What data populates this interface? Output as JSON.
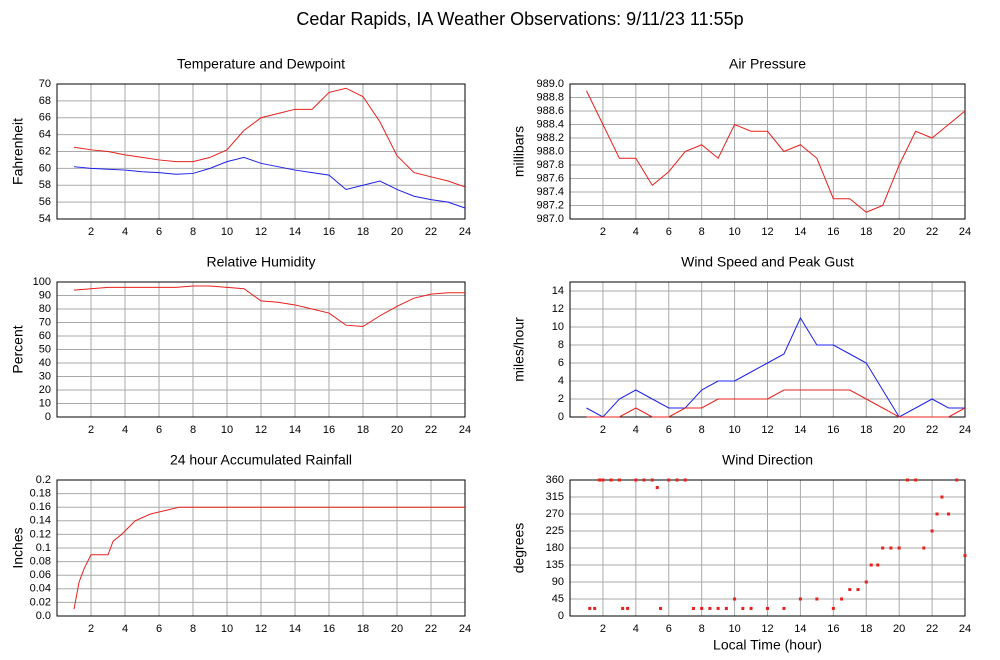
{
  "title": "Cedar Rapids, IA Weather Observations: 9/11/23 11:55p",
  "chart_data": [
    {
      "type": "line",
      "title": "Temperature and Dewpoint",
      "ylabel": "Fahrenheit",
      "x": [
        1,
        2,
        3,
        4,
        5,
        6,
        7,
        8,
        9,
        10,
        11,
        12,
        13,
        14,
        15,
        16,
        17,
        18,
        19,
        20,
        21,
        22,
        23,
        24
      ],
      "series": [
        {
          "color": "#e8201c",
          "values": [
            62.5,
            62.2,
            62,
            61.6,
            61.3,
            61,
            60.8,
            60.8,
            61.3,
            62.2,
            64.5,
            66,
            66.5,
            67,
            67,
            69,
            69.5,
            68.5,
            65.5,
            61.5,
            59.5,
            59,
            58.5,
            57.8
          ]
        },
        {
          "color": "#1c20e8",
          "values": [
            60.2,
            60,
            59.9,
            59.8,
            59.6,
            59.5,
            59.3,
            59.4,
            60,
            60.8,
            61.3,
            60.6,
            60.2,
            59.8,
            59.5,
            59.2,
            57.5,
            58,
            58.5,
            57.5,
            56.7,
            56.3,
            56,
            55.3
          ]
        }
      ],
      "xlim": [
        0,
        24
      ],
      "xticks": [
        2,
        4,
        6,
        8,
        10,
        12,
        14,
        16,
        18,
        20,
        22,
        24
      ],
      "ylim": [
        54,
        70
      ],
      "yticks": [
        54,
        56,
        58,
        60,
        62,
        64,
        66,
        68,
        70
      ],
      "grid": true
    },
    {
      "type": "line",
      "title": "Air Pressure",
      "ylabel": "millibars",
      "x": [
        1,
        2,
        3,
        4,
        5,
        6,
        7,
        8,
        9,
        10,
        11,
        12,
        13,
        14,
        15,
        16,
        17,
        18,
        19,
        20,
        21,
        22,
        23,
        24
      ],
      "series": [
        {
          "color": "#e8201c",
          "values": [
            988.9,
            988.4,
            987.9,
            987.9,
            987.5,
            987.7,
            988.0,
            988.1,
            987.9,
            988.4,
            988.3,
            988.3,
            988.0,
            988.1,
            987.9,
            987.3,
            987.3,
            987.1,
            987.2,
            987.8,
            988.3,
            988.2,
            988.4,
            988.6
          ]
        }
      ],
      "xlim": [
        0,
        24
      ],
      "xticks": [
        2,
        4,
        6,
        8,
        10,
        12,
        14,
        16,
        18,
        20,
        22,
        24
      ],
      "ylim": [
        987,
        989
      ],
      "yticks": [
        {
          "value": 987,
          "label": "987.0"
        },
        987.2,
        987.4,
        987.6,
        987.8,
        {
          "value": 988,
          "label": "988.0"
        },
        988.2,
        988.4,
        988.6,
        988.8,
        {
          "value": 989,
          "label": "989.0"
        }
      ],
      "grid": true
    },
    {
      "type": "line",
      "title": "Relative Humidity",
      "ylabel": "Percent",
      "x": [
        1,
        2,
        3,
        4,
        5,
        6,
        7,
        8,
        9,
        10,
        11,
        12,
        13,
        14,
        15,
        16,
        17,
        18,
        19,
        20,
        21,
        22,
        23,
        24
      ],
      "series": [
        {
          "color": "#e8201c",
          "values": [
            94,
            95,
            96,
            96,
            96,
            96,
            96,
            97,
            97,
            96,
            95,
            86,
            85,
            83,
            80,
            77,
            68,
            67,
            75,
            82,
            88,
            91,
            92,
            92
          ]
        }
      ],
      "xlim": [
        0,
        24
      ],
      "xticks": [
        2,
        4,
        6,
        8,
        10,
        12,
        14,
        16,
        18,
        20,
        22,
        24
      ],
      "ylim": [
        0,
        100
      ],
      "yticks": [
        0,
        10,
        20,
        30,
        40,
        50,
        60,
        70,
        80,
        90,
        100
      ],
      "grid": true
    },
    {
      "type": "line",
      "title": "Wind Speed and Peak Gust",
      "ylabel": "miles/hour",
      "x": [
        1,
        2,
        3,
        4,
        5,
        6,
        7,
        8,
        9,
        10,
        11,
        12,
        13,
        14,
        15,
        16,
        17,
        18,
        19,
        20,
        21,
        22,
        23,
        24
      ],
      "series": [
        {
          "color": "#1c20e8",
          "values": [
            1,
            0,
            2,
            3,
            2,
            1,
            1,
            3,
            4,
            4,
            5,
            6,
            7,
            11,
            8,
            8,
            7,
            6,
            3,
            0,
            1,
            2,
            1,
            1
          ]
        },
        {
          "color": "#e8201c",
          "values": [
            0,
            0,
            0,
            1,
            0,
            0,
            1,
            1,
            2,
            2,
            2,
            2,
            3,
            3,
            3,
            3,
            3,
            2,
            1,
            0,
            0,
            0,
            0,
            1
          ]
        }
      ],
      "xlim": [
        0,
        24
      ],
      "xticks": [
        2,
        4,
        6,
        8,
        10,
        12,
        14,
        16,
        18,
        20,
        22,
        24
      ],
      "ylim": [
        0,
        15
      ],
      "yticks": [
        0,
        2,
        4,
        6,
        8,
        10,
        12,
        14
      ],
      "grid": true
    },
    {
      "type": "line",
      "title": "24 hour Accumulated Rainfall",
      "ylabel": "Inches",
      "x": [
        1,
        1.3,
        1.6,
        2,
        3,
        3.3,
        3.8,
        4.2,
        4.6,
        5.5,
        7.2,
        24
      ],
      "series": [
        {
          "color": "#e8201c",
          "values": [
            0.01,
            0.05,
            0.07,
            0.09,
            0.09,
            0.11,
            0.12,
            0.13,
            0.14,
            0.15,
            0.16,
            0.16
          ]
        }
      ],
      "xlim": [
        0,
        24
      ],
      "xticks": [
        2,
        4,
        6,
        8,
        10,
        12,
        14,
        16,
        18,
        20,
        22,
        24
      ],
      "ylim": [
        0,
        0.2
      ],
      "yticks": [
        {
          "value": 0,
          "label": "0.0"
        },
        0.02,
        0.04,
        0.06,
        0.08,
        0.1,
        0.12,
        0.14,
        0.16,
        0.18,
        0.2
      ],
      "grid": true
    },
    {
      "type": "scatter",
      "title": "Wind Direction",
      "ylabel": "degrees",
      "xlabel": "Local Time (hour)",
      "x": [
        1.2,
        1.5,
        1.8,
        2,
        2.5,
        3,
        3.2,
        3.5,
        4,
        4.5,
        5,
        5.3,
        5.5,
        6,
        6.5,
        7,
        7.5,
        8,
        8.5,
        9,
        9.5,
        10,
        10.5,
        11,
        12,
        13,
        14,
        15,
        16,
        16.5,
        17,
        17.5,
        18,
        18.3,
        18.7,
        19,
        19.5,
        20,
        20.5,
        21,
        21.5,
        22,
        22.3,
        22.6,
        23,
        23.5,
        24
      ],
      "values": [
        20,
        20,
        360,
        360,
        360,
        360,
        20,
        20,
        360,
        360,
        360,
        340,
        20,
        360,
        360,
        360,
        20,
        20,
        20,
        20,
        20,
        45,
        20,
        20,
        20,
        20,
        45,
        45,
        20,
        45,
        70,
        70,
        90,
        135,
        135,
        180,
        180,
        180,
        360,
        360,
        180,
        225,
        270,
        315,
        270,
        360,
        160
      ],
      "color": "#e8201c",
      "xlim": [
        0,
        24
      ],
      "xticks": [
        2,
        4,
        6,
        8,
        10,
        12,
        14,
        16,
        18,
        20,
        22,
        24
      ],
      "ylim": [
        0,
        360
      ],
      "yticks": [
        0,
        45,
        90,
        135,
        180,
        225,
        270,
        315,
        360
      ],
      "grid": true
    }
  ]
}
